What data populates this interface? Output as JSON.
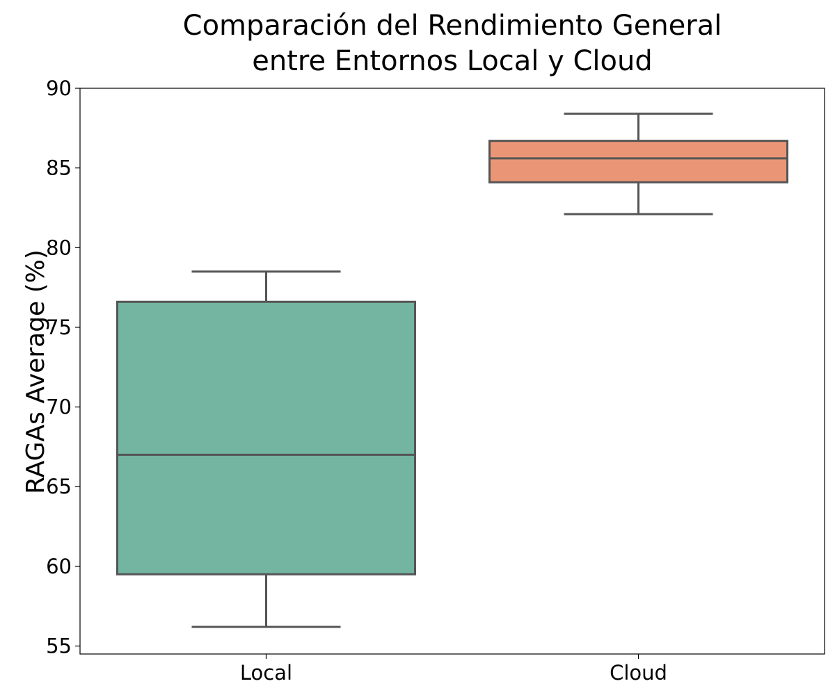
{
  "chart_data": {
    "type": "box",
    "title": [
      "Comparación del Rendimiento General",
      "entre Entornos Local y Cloud"
    ],
    "xlabel": "",
    "ylabel": "RAGAs Average (%)",
    "ylim": [
      54.5,
      90
    ],
    "yticks": [
      55,
      60,
      65,
      70,
      75,
      80,
      85,
      90
    ],
    "grid": false,
    "categories": [
      "Local",
      "Cloud"
    ],
    "boxes": [
      {
        "category": "Local",
        "whisker_low": 56.2,
        "q1": 59.5,
        "median": 67.0,
        "q3": 76.6,
        "whisker_high": 78.5,
        "color": "#73b5a1"
      },
      {
        "category": "Cloud",
        "whisker_low": 82.1,
        "q1": 84.1,
        "median": 85.6,
        "q3": 86.7,
        "whisker_high": 88.4,
        "color": "#ea9676"
      }
    ],
    "line_color": "#555555"
  }
}
